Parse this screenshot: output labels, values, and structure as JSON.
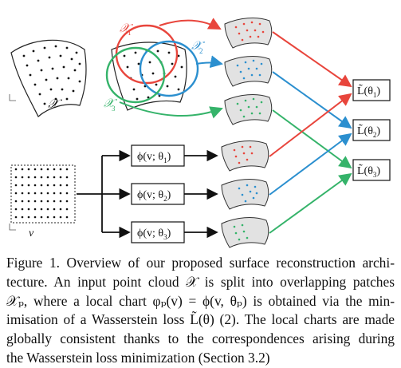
{
  "figure": {
    "input_cloud_label": "𝒳",
    "param_domain_label": "v",
    "patch_labels": [
      "𝒳",
      "𝒳",
      "𝒳"
    ],
    "patch_subscripts": [
      "1",
      "2",
      "3"
    ],
    "chart_boxes": [
      "ϕ(v; θ",
      "ϕ(v; θ",
      "ϕ(v; θ"
    ],
    "chart_box_subscripts": [
      "1",
      "2",
      "3"
    ],
    "chart_box_closing": ")",
    "loss_boxes": [
      "L̃(θ",
      "L̃(θ",
      "L̃(θ"
    ],
    "loss_box_subscripts": [
      "1",
      "2",
      "3"
    ],
    "loss_box_closing": ")",
    "colors": {
      "red": "#e8453c",
      "blue": "#2b8fcf",
      "green": "#35b36a",
      "black": "#111111",
      "surface_fill": "#e2e2e2"
    }
  },
  "caption": {
    "lines": [
      "Figure 1. Overview of our proposed surface reconstruction archi-",
      "tecture.  An input point cloud 𝒳 is split into overlapping patches",
      "𝒳ₚ, where a local chart φₚ(v) = ϕ(v, θₚ) is obtained via the min-",
      "imisation of a Wasserstein loss L̃(θ) (2). The local charts are made",
      "globally consistent thanks to the correspondences arising during",
      "the Wasserstein loss minimization (Section 3.2)"
    ],
    "eq_ref": "2",
    "section_ref": "3.2"
  }
}
